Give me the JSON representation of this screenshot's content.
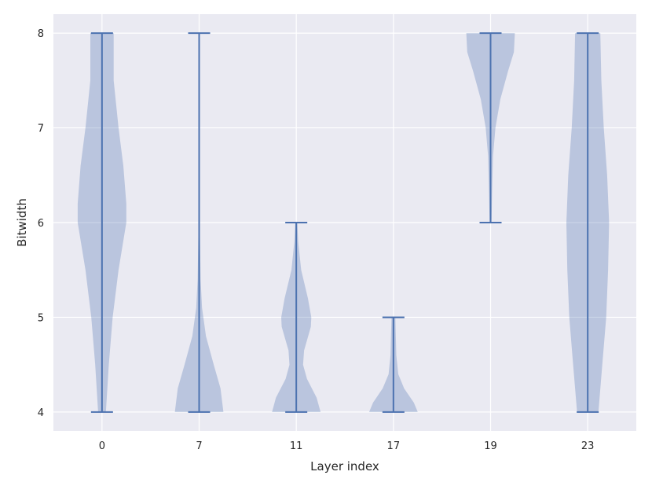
{
  "chart_data": {
    "type": "violin",
    "title": "",
    "xlabel": "Layer index",
    "ylabel": "Bitwidth",
    "ylim": [
      3.8,
      8.2
    ],
    "yticks": [
      4,
      5,
      6,
      7,
      8
    ],
    "grid": true,
    "style": {
      "background": "#eaeaf2",
      "grid": "#ffffff",
      "fill": "#4c72b0",
      "fill_opacity": 0.3,
      "line": "#4c72b0"
    },
    "categories": [
      "0",
      "7",
      "11",
      "17",
      "19",
      "23"
    ],
    "violins": [
      {
        "label": "0",
        "min": 4,
        "max": 8,
        "profile": [
          [
            4,
            0.08
          ],
          [
            4.5,
            0.14
          ],
          [
            5,
            0.22
          ],
          [
            5.5,
            0.34
          ],
          [
            6,
            0.5
          ],
          [
            6.2,
            0.5
          ],
          [
            6.6,
            0.44
          ],
          [
            7,
            0.34
          ],
          [
            7.5,
            0.24
          ],
          [
            8,
            0.24
          ]
        ]
      },
      {
        "label": "7",
        "min": 4,
        "max": 8,
        "profile": [
          [
            4,
            0.5
          ],
          [
            4.25,
            0.44
          ],
          [
            4.5,
            0.3
          ],
          [
            4.8,
            0.14
          ],
          [
            5.1,
            0.06
          ],
          [
            5.4,
            0.03
          ],
          [
            6,
            0.012
          ],
          [
            7,
            0.008
          ],
          [
            8,
            0.008
          ]
        ]
      },
      {
        "label": "11",
        "min": 4,
        "max": 6,
        "profile": [
          [
            4,
            0.5
          ],
          [
            4.15,
            0.42
          ],
          [
            4.35,
            0.22
          ],
          [
            4.5,
            0.14
          ],
          [
            4.65,
            0.16
          ],
          [
            4.9,
            0.3
          ],
          [
            5,
            0.31
          ],
          [
            5.2,
            0.24
          ],
          [
            5.5,
            0.1
          ],
          [
            5.8,
            0.04
          ],
          [
            6,
            0.02
          ]
        ]
      },
      {
        "label": "17",
        "min": 4,
        "max": 5,
        "profile": [
          [
            4,
            0.5
          ],
          [
            4.1,
            0.42
          ],
          [
            4.25,
            0.22
          ],
          [
            4.4,
            0.1
          ],
          [
            4.6,
            0.06
          ],
          [
            4.8,
            0.05
          ],
          [
            5,
            0.04
          ]
        ]
      },
      {
        "label": "19",
        "min": 6,
        "max": 8,
        "profile": [
          [
            6,
            0.02
          ],
          [
            6.3,
            0.03
          ],
          [
            6.7,
            0.05
          ],
          [
            7,
            0.1
          ],
          [
            7.3,
            0.2
          ],
          [
            7.6,
            0.36
          ],
          [
            7.8,
            0.48
          ],
          [
            8,
            0.5
          ]
        ]
      },
      {
        "label": "23",
        "min": 4,
        "max": 8,
        "profile": [
          [
            4,
            0.22
          ],
          [
            4.5,
            0.3
          ],
          [
            5,
            0.38
          ],
          [
            5.5,
            0.42
          ],
          [
            6,
            0.44
          ],
          [
            6.5,
            0.4
          ],
          [
            7,
            0.33
          ],
          [
            7.5,
            0.28
          ],
          [
            8,
            0.26
          ]
        ]
      }
    ]
  }
}
